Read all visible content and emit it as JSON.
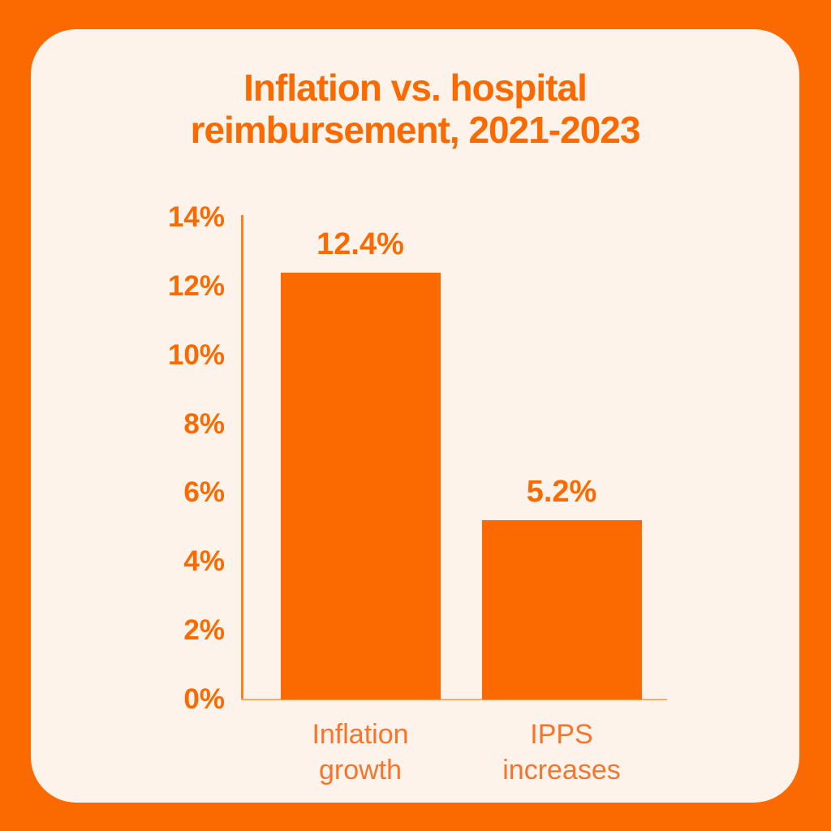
{
  "page": {
    "background_color": "#FB6A00",
    "card_background_color": "#FDF3EB"
  },
  "chart": {
    "title": "Inflation vs. hospital reimbursement, 2021-2023",
    "title_lines": [
      "Inflation vs. hospital",
      "reimbursement, 2021-2023"
    ]
  },
  "chart_data": {
    "type": "bar",
    "title": "Inflation vs. hospital reimbursement, 2021-2023",
    "categories": [
      "Inflation growth",
      "IPPS increases"
    ],
    "values": [
      12.4,
      5.2
    ],
    "value_labels": [
      "12.4%",
      "5.2%"
    ],
    "xlabel": "",
    "ylabel": "",
    "ylim": [
      0,
      14
    ],
    "ytick_step": 2,
    "ytick_labels": [
      "0%",
      "2%",
      "4%",
      "6%",
      "8%",
      "10%",
      "12%",
      "14%"
    ],
    "grid": false,
    "legend": null,
    "bar_color": "#FB6A00",
    "text_color": "#FB6A00"
  },
  "colors": {
    "accent_orange": "#FB6A00",
    "cream": "#FDF3EB",
    "baseline_light_orange": "#F8A96E"
  }
}
